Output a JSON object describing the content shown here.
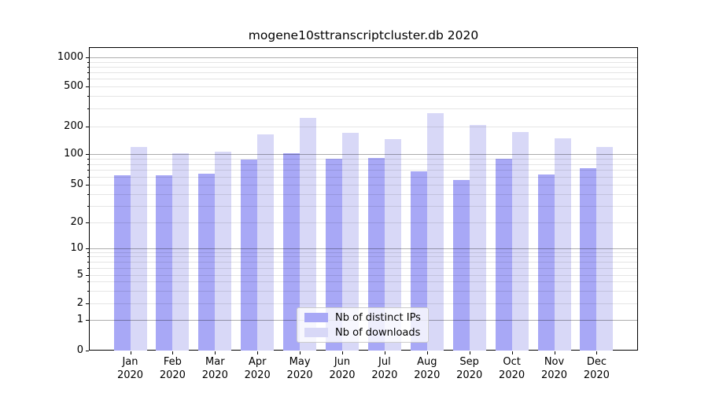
{
  "title": "mogene10sttranscriptcluster.db 2020",
  "chart_data": {
    "type": "bar",
    "title": "mogene10sttranscriptcluster.db 2020",
    "months": [
      "Jan",
      "Feb",
      "Mar",
      "Apr",
      "May",
      "Jun",
      "Jul",
      "Aug",
      "Sep",
      "Oct",
      "Nov",
      "Dec"
    ],
    "year": "2020",
    "categories": [
      "Jan 2020",
      "Feb 2020",
      "Mar 2020",
      "Apr 2020",
      "May 2020",
      "Jun 2020",
      "Jul 2020",
      "Aug 2020",
      "Sep 2020",
      "Oct 2020",
      "Nov 2020",
      "Dec 2020"
    ],
    "series": [
      {
        "name": "Nb of distinct IPs",
        "color": "#a8a8f6",
        "values": [
          62,
          62,
          64,
          88,
          102,
          90,
          92,
          68,
          56,
          90,
          63,
          73
        ]
      },
      {
        "name": "Nb of downloads",
        "color": "#d8d8f7",
        "values": [
          120,
          102,
          107,
          165,
          245,
          170,
          146,
          272,
          208,
          175,
          148,
          120
        ]
      }
    ],
    "yscale": "symlog",
    "yticks": [
      0,
      1,
      2,
      5,
      10,
      20,
      50,
      100,
      200,
      500,
      1000
    ],
    "ylim": [
      0,
      1276
    ],
    "grid": true,
    "legend_position": "lower center"
  },
  "legend": {
    "items": [
      {
        "label": "Nb of distinct IPs",
        "color": "#a8a8f6"
      },
      {
        "label": "Nb of downloads",
        "color": "#d8d8f7"
      }
    ]
  },
  "colors": {
    "bar_ips": "#a8a8f6",
    "bar_downloads": "#d8d8f7",
    "grid_major": "#b3b3b3",
    "grid_minor": "#e6e6e6",
    "axis": "#000000"
  }
}
